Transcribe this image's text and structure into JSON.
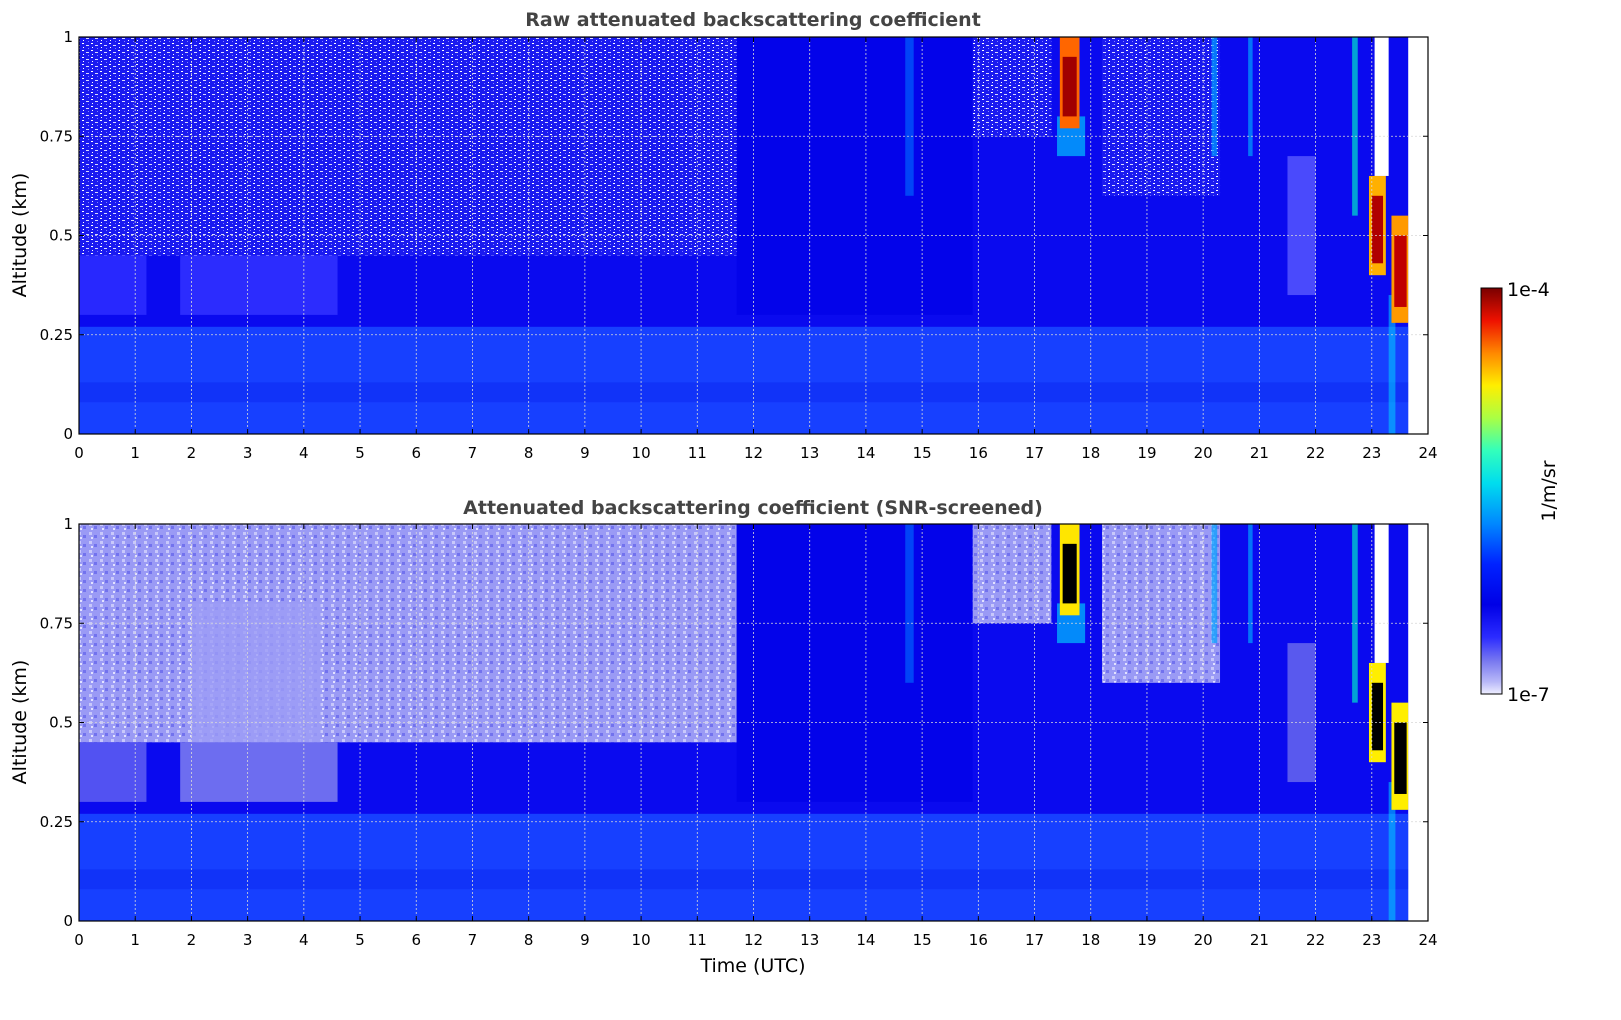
{
  "figure": {
    "colorbar": {
      "label": "1/m/sr",
      "max_label": "1e-4",
      "min_label": "1e-7",
      "scale": "log",
      "range": [
        1e-07,
        0.0001
      ]
    },
    "xlabel": "Time (UTC)"
  },
  "chart_data": [
    {
      "type": "heatmap",
      "title": "Raw attenuated backscattering coefficient",
      "xlabel": "",
      "ylabel": "Altitude (km)",
      "xlim": [
        0,
        24
      ],
      "ylim": [
        0,
        1
      ],
      "xticks": [
        "0",
        "1",
        "2",
        "3",
        "4",
        "5",
        "6",
        "7",
        "8",
        "9",
        "10",
        "11",
        "12",
        "13",
        "14",
        "15",
        "16",
        "17",
        "18",
        "19",
        "20",
        "21",
        "22",
        "23",
        "24"
      ],
      "yticks": [
        "0",
        "0.25",
        "0.5",
        "0.75",
        "1"
      ],
      "grid": true,
      "colormap": "jet (log scale)",
      "data_end_time": 23.65,
      "features": [
        {
          "time": [
            0.0,
            11.7
          ],
          "altitude": [
            0.45,
            1.0
          ],
          "level": "noise (sparse white/blue speckle)"
        },
        {
          "time": [
            15.9,
            17.3
          ],
          "altitude": [
            0.75,
            1.0
          ],
          "level": "noise speckle"
        },
        {
          "time": [
            18.2,
            20.3
          ],
          "altitude": [
            0.6,
            1.0
          ],
          "level": "noise speckle"
        },
        {
          "time": [
            17.45,
            17.8
          ],
          "altitude": [
            0.77,
            1.0
          ],
          "level": "cloud ~1e-4 (red)"
        },
        {
          "time": [
            22.95,
            23.25
          ],
          "altitude": [
            0.42,
            0.63
          ],
          "level": "cloud ~1e-4 (red)"
        },
        {
          "time": [
            23.35,
            23.65
          ],
          "altitude": [
            0.3,
            0.52
          ],
          "level": "cloud ~1e-4 (red)"
        },
        {
          "time": [
            0.0,
            23.65
          ],
          "altitude": [
            0.0,
            0.25
          ],
          "level": "boundary layer ~1e-6 (blue)"
        }
      ]
    },
    {
      "type": "heatmap",
      "title": "Attenuated backscattering coefficient (SNR-screened)",
      "xlabel": "Time (UTC)",
      "ylabel": "Altitude (km)",
      "xlim": [
        0,
        24
      ],
      "ylim": [
        0,
        1
      ],
      "xticks": [
        "0",
        "1",
        "2",
        "3",
        "4",
        "5",
        "6",
        "7",
        "8",
        "9",
        "10",
        "11",
        "12",
        "13",
        "14",
        "15",
        "16",
        "17",
        "18",
        "19",
        "20",
        "21",
        "22",
        "23",
        "24"
      ],
      "yticks": [
        "0",
        "0.25",
        "0.5",
        "0.75",
        "1"
      ],
      "grid": true,
      "colormap": "jet (log scale)",
      "data_end_time": 23.65,
      "features": [
        {
          "time": [
            0.0,
            11.7
          ],
          "altitude": [
            0.45,
            1.0
          ],
          "level": "screened low values (lavender)"
        },
        {
          "time": [
            17.45,
            17.8
          ],
          "altitude": [
            0.77,
            0.97
          ],
          "level": "saturated cloud (black)"
        },
        {
          "time": [
            22.95,
            23.25
          ],
          "altitude": [
            0.42,
            0.6
          ],
          "level": "saturated cloud (black)"
        },
        {
          "time": [
            23.35,
            23.65
          ],
          "altitude": [
            0.32,
            0.5
          ],
          "level": "saturated cloud (black)"
        },
        {
          "time": [
            0.0,
            23.65
          ],
          "altitude": [
            0.0,
            0.25
          ],
          "level": "boundary layer ~1e-6 (blue)"
        }
      ]
    }
  ]
}
